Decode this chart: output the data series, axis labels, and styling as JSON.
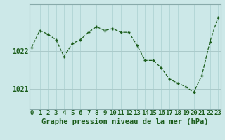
{
  "x": [
    0,
    1,
    2,
    3,
    4,
    5,
    6,
    7,
    8,
    9,
    10,
    11,
    12,
    13,
    14,
    15,
    16,
    17,
    18,
    19,
    20,
    21,
    22,
    23
  ],
  "y": [
    1022.1,
    1022.55,
    1022.45,
    1022.3,
    1021.85,
    1022.2,
    1022.3,
    1022.5,
    1022.65,
    1022.55,
    1022.6,
    1022.5,
    1022.5,
    1022.15,
    1021.75,
    1021.75,
    1021.55,
    1021.25,
    1021.15,
    1021.05,
    1020.9,
    1021.35,
    1022.25,
    1022.9
  ],
  "line_color": "#1a5c1a",
  "marker_color": "#1a5c1a",
  "bg_color": "#cce8e8",
  "grid_color_v": "#b0d4d4",
  "grid_color_h": "#aacaca",
  "xlabel": "Graphe pression niveau de la mer (hPa)",
  "xlabel_color": "#1a5c1a",
  "border_color": "#88aaaa",
  "ytick_labels": [
    "1021",
    "1022"
  ],
  "ytick_values": [
    1021.0,
    1022.0
  ],
  "ylim": [
    1020.45,
    1023.25
  ],
  "xlim": [
    -0.3,
    23.3
  ],
  "tick_fontsize": 6.5,
  "xlabel_fontsize": 7.5
}
